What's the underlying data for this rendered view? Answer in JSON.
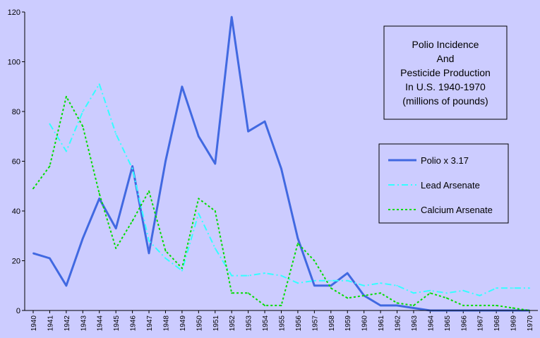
{
  "chart_data": {
    "type": "line",
    "title_lines": [
      "Polio Incidence",
      "And",
      "Pesticide Production",
      "In U.S. 1940-1970",
      "(millions of pounds)"
    ],
    "xlabel": "",
    "ylabel": "",
    "ylim": [
      0,
      120
    ],
    "yticks": [
      0,
      20,
      40,
      60,
      80,
      100,
      120
    ],
    "grid": false,
    "legend_position": "right",
    "categories": [
      "1940",
      "1941",
      "1942",
      "1943",
      "1944",
      "1945",
      "1946",
      "1947",
      "1948",
      "1949",
      "1950",
      "1951",
      "1952",
      "1953",
      "1954",
      "1955",
      "1956",
      "1957",
      "1958",
      "1959",
      "1960",
      "1961",
      "1962",
      "1963",
      "1964",
      "1965",
      "1966",
      "1967",
      "1968",
      "1969",
      "1970"
    ],
    "series": [
      {
        "name": "Polio x 3.17",
        "color": "#4169e1",
        "style": "solid",
        "values": [
          23,
          21,
          10,
          29,
          45,
          33,
          58,
          23,
          60,
          90,
          70,
          59,
          118,
          72,
          76,
          57,
          29,
          10,
          10,
          15,
          6,
          2,
          2,
          1,
          0,
          0,
          0,
          0,
          0,
          0,
          0
        ]
      },
      {
        "name": "Lead Arsenate",
        "color": "#33ffff",
        "style": "dashdot",
        "values": [
          null,
          75,
          64,
          80,
          91,
          71,
          57,
          28,
          21,
          16,
          39,
          25,
          14,
          14,
          15,
          14,
          11,
          12,
          12,
          12,
          10,
          11,
          10,
          7,
          8,
          7,
          8,
          6,
          9,
          9,
          9
        ]
      },
      {
        "name": "Calcium Arsenate",
        "color": "#00dd00",
        "style": "dotted",
        "values": [
          49,
          58,
          86,
          74,
          47,
          25,
          36,
          48,
          24,
          17,
          45,
          40,
          7,
          7,
          2,
          2,
          27,
          20,
          9,
          5,
          6,
          7,
          3,
          2,
          7,
          5,
          2,
          2,
          2,
          1,
          0
        ]
      }
    ]
  }
}
